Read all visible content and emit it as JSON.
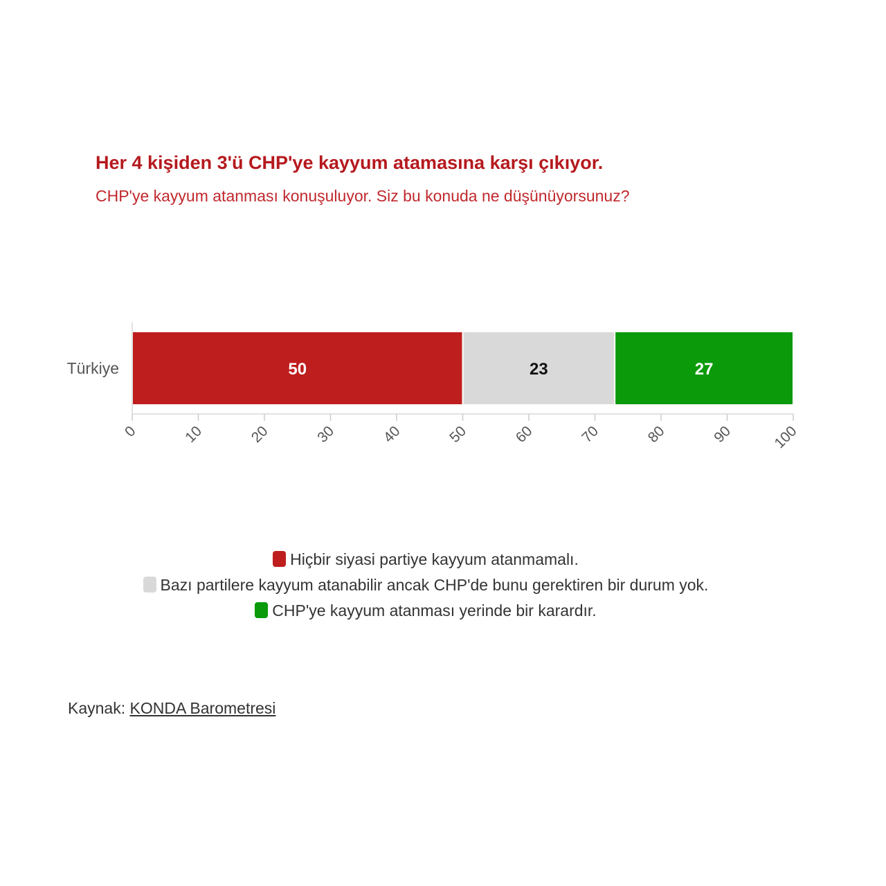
{
  "title": "Her 4 kişiden 3'ü CHP'ye kayyum atamasına karşı çıkıyor.",
  "subtitle": "CHP'ye kayyum atanması konuşuluyor. Siz bu konuda ne düşünüyorsunuz?",
  "chart_data": {
    "type": "bar",
    "orientation": "horizontal-stacked",
    "categories": [
      "Türkiye"
    ],
    "series": [
      {
        "name": "Hiçbir siyasi partiye kayyum atanmamalı.",
        "values": [
          50
        ],
        "color": "#bf1e1e",
        "label_color": "#ffffff"
      },
      {
        "name": "Bazı partilere kayyum atanabilir ancak CHP'de bunu gerektiren bir durum yok.",
        "values": [
          23
        ],
        "color": "#d9d9d9",
        "label_color": "#111111"
      },
      {
        "name": "CHP'ye kayyum atanması yerinde bir karardır.",
        "values": [
          27
        ],
        "color": "#0a9a0a",
        "label_color": "#ffffff"
      }
    ],
    "xlim": [
      0,
      100
    ],
    "xticks": [
      "0",
      "10",
      "20",
      "30",
      "40",
      "50",
      "60",
      "70",
      "80",
      "90",
      "100"
    ],
    "legend_position": "bottom-center",
    "grid": false
  },
  "source": {
    "label": "Kaynak: ",
    "link_text": "KONDA Barometresi"
  }
}
